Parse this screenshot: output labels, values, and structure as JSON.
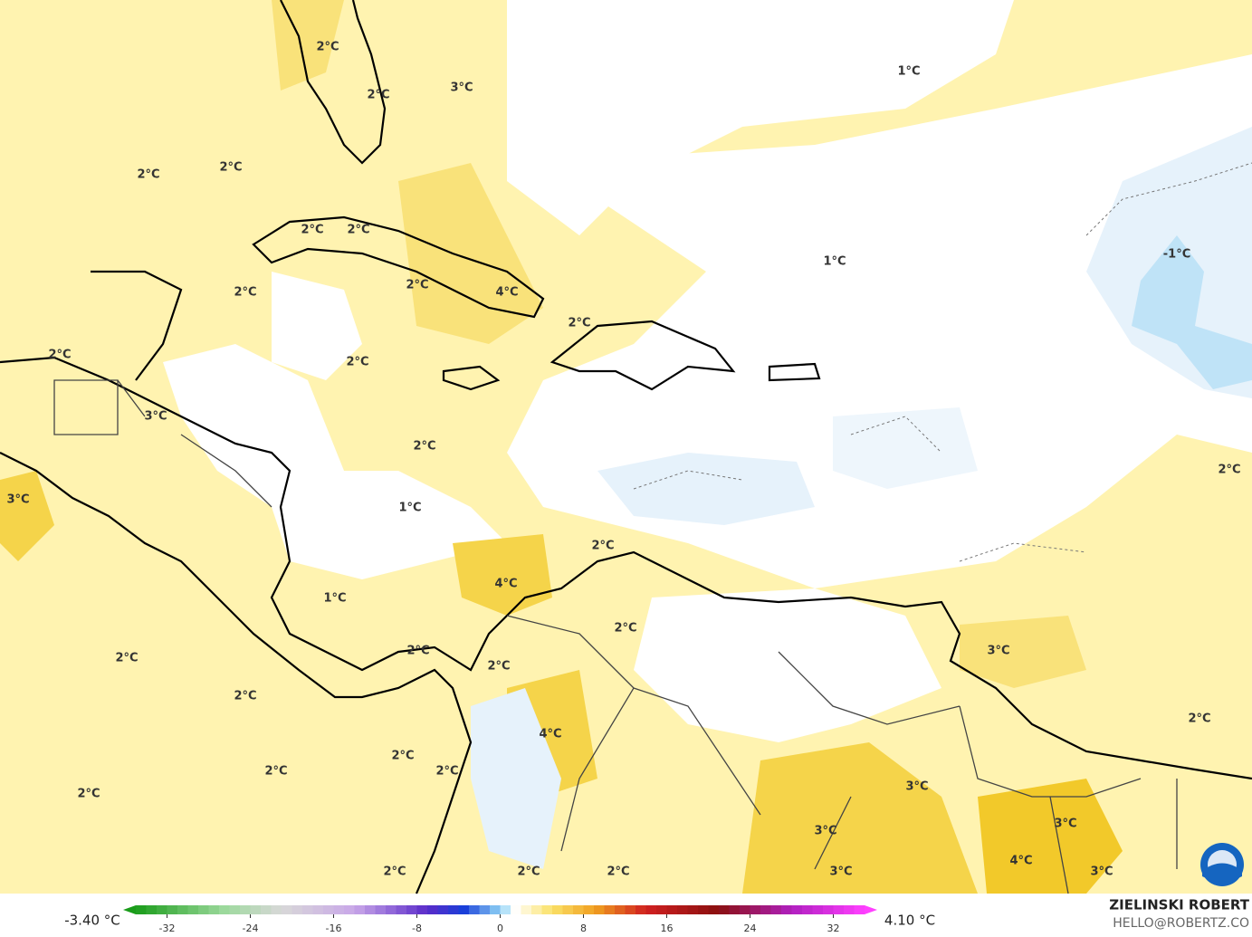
{
  "map": {
    "labels": [
      "2°C",
      "2°C",
      "3°C",
      "1°C",
      "2°C",
      "2°C",
      "2°C",
      "2°C",
      "2°C",
      "2°C",
      "4°C",
      "1°C",
      "-1°C",
      "2°C",
      "2°C",
      "2°C",
      "3°C",
      "2°C",
      "3°C",
      "1°C",
      "2°C",
      "2°C",
      "4°C",
      "1°C",
      "2°C",
      "3°C",
      "2°C",
      "2°C",
      "2°C",
      "2°C",
      "2°C",
      "4°C",
      "2°C",
      "2°C",
      "2°C",
      "3°C",
      "2°C",
      "3°C",
      "3°C",
      "4°C",
      "2°C",
      "2°C",
      "2°C",
      "3°C",
      "3°C"
    ]
  },
  "colorbar": {
    "min_label": "-3.40 °C",
    "max_label": "4.10 °C",
    "lim": [
      -35,
      35
    ],
    "ticks": [
      -32,
      -24,
      -16,
      -8,
      0,
      8,
      16,
      24,
      32
    ]
  },
  "credit": {
    "name": "ZIELINSKI ROBERT",
    "email": "HELLO@ROBERTZ.CO"
  }
}
